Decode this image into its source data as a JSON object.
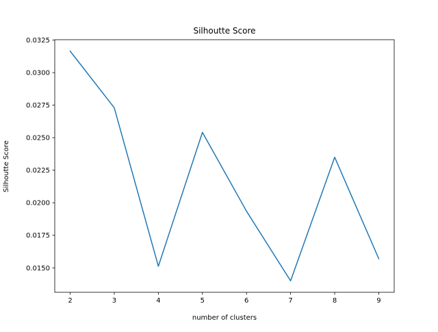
{
  "chart_data": {
    "type": "line",
    "title": "Silhoutte Score",
    "xlabel": "number of clusters",
    "ylabel": "Silhoutte Score",
    "x": [
      2,
      3,
      4,
      5,
      6,
      7,
      8,
      9
    ],
    "series": [
      {
        "values": [
          0.03165,
          0.0273,
          0.01512,
          0.02541,
          0.01935,
          0.014,
          0.0235,
          0.0157
        ],
        "color": "#1f77b4"
      }
    ],
    "xticks": [
      "2",
      "3",
      "4",
      "5",
      "6",
      "7",
      "8",
      "9"
    ],
    "yticks": [
      "0.0150",
      "0.0175",
      "0.0200",
      "0.0225",
      "0.0250",
      "0.0275",
      "0.0300",
      "0.0325"
    ],
    "xlim": [
      1.65,
      9.35
    ],
    "ylim": [
      0.01312,
      0.03253
    ],
    "grid": false
  }
}
